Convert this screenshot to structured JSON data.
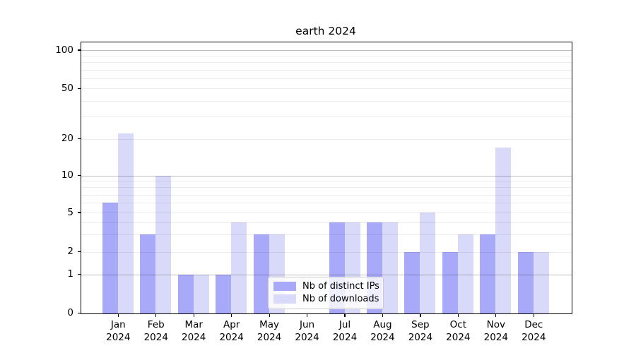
{
  "page": {
    "background": "#ffffff"
  },
  "chart_data": {
    "type": "bar",
    "title": "earth 2024",
    "categories": [
      "Jan 2024",
      "Feb 2024",
      "Mar 2024",
      "Apr 2024",
      "May 2024",
      "Jun 2024",
      "Jul 2024",
      "Aug 2024",
      "Sep 2024",
      "Oct 2024",
      "Nov 2024",
      "Dec 2024"
    ],
    "months": [
      "Jan",
      "Feb",
      "Mar",
      "Apr",
      "May",
      "Jun",
      "Jul",
      "Aug",
      "Sep",
      "Oct",
      "Nov",
      "Dec"
    ],
    "year": "2024",
    "series": [
      {
        "name": "Nb of distinct IPs",
        "color": "#a9a9fa",
        "values": [
          6,
          3,
          1,
          1,
          3,
          0,
          4,
          4,
          2,
          2,
          3,
          2
        ]
      },
      {
        "name": "Nb of downloads",
        "color": "#d9d9fa",
        "values": [
          22,
          10,
          1,
          4,
          3,
          0,
          4,
          4,
          5,
          3,
          17,
          2
        ]
      }
    ],
    "xlabel": "",
    "ylabel": "",
    "ylim": [
      0,
      117
    ],
    "yscale": "log-like with zero baseline",
    "ytick_values": [
      0,
      1,
      2,
      5,
      10,
      20,
      50,
      100
    ],
    "ytick_labels": [
      "0",
      "1",
      "2",
      "5",
      "10",
      "20",
      "50",
      "100"
    ],
    "minor_gridline_values": [
      2,
      3,
      4,
      5,
      6,
      7,
      8,
      9,
      20,
      30,
      40,
      50,
      60,
      70,
      80,
      90
    ],
    "major_gridline_values": [
      1,
      10,
      100
    ],
    "grid": "on (minor + major, drawn over bars)",
    "legend_position": "lower center",
    "colors": {
      "distinct_ips_bar": "#a9a9fa",
      "downloads_bar": "#d9d9fa",
      "major_grid": "rgba(0,0,0,0.25)",
      "minor_grid": "rgba(0,0,0,0.075)",
      "spine": "#000000",
      "text": "#000000",
      "legend_border": "#cccccc"
    }
  }
}
